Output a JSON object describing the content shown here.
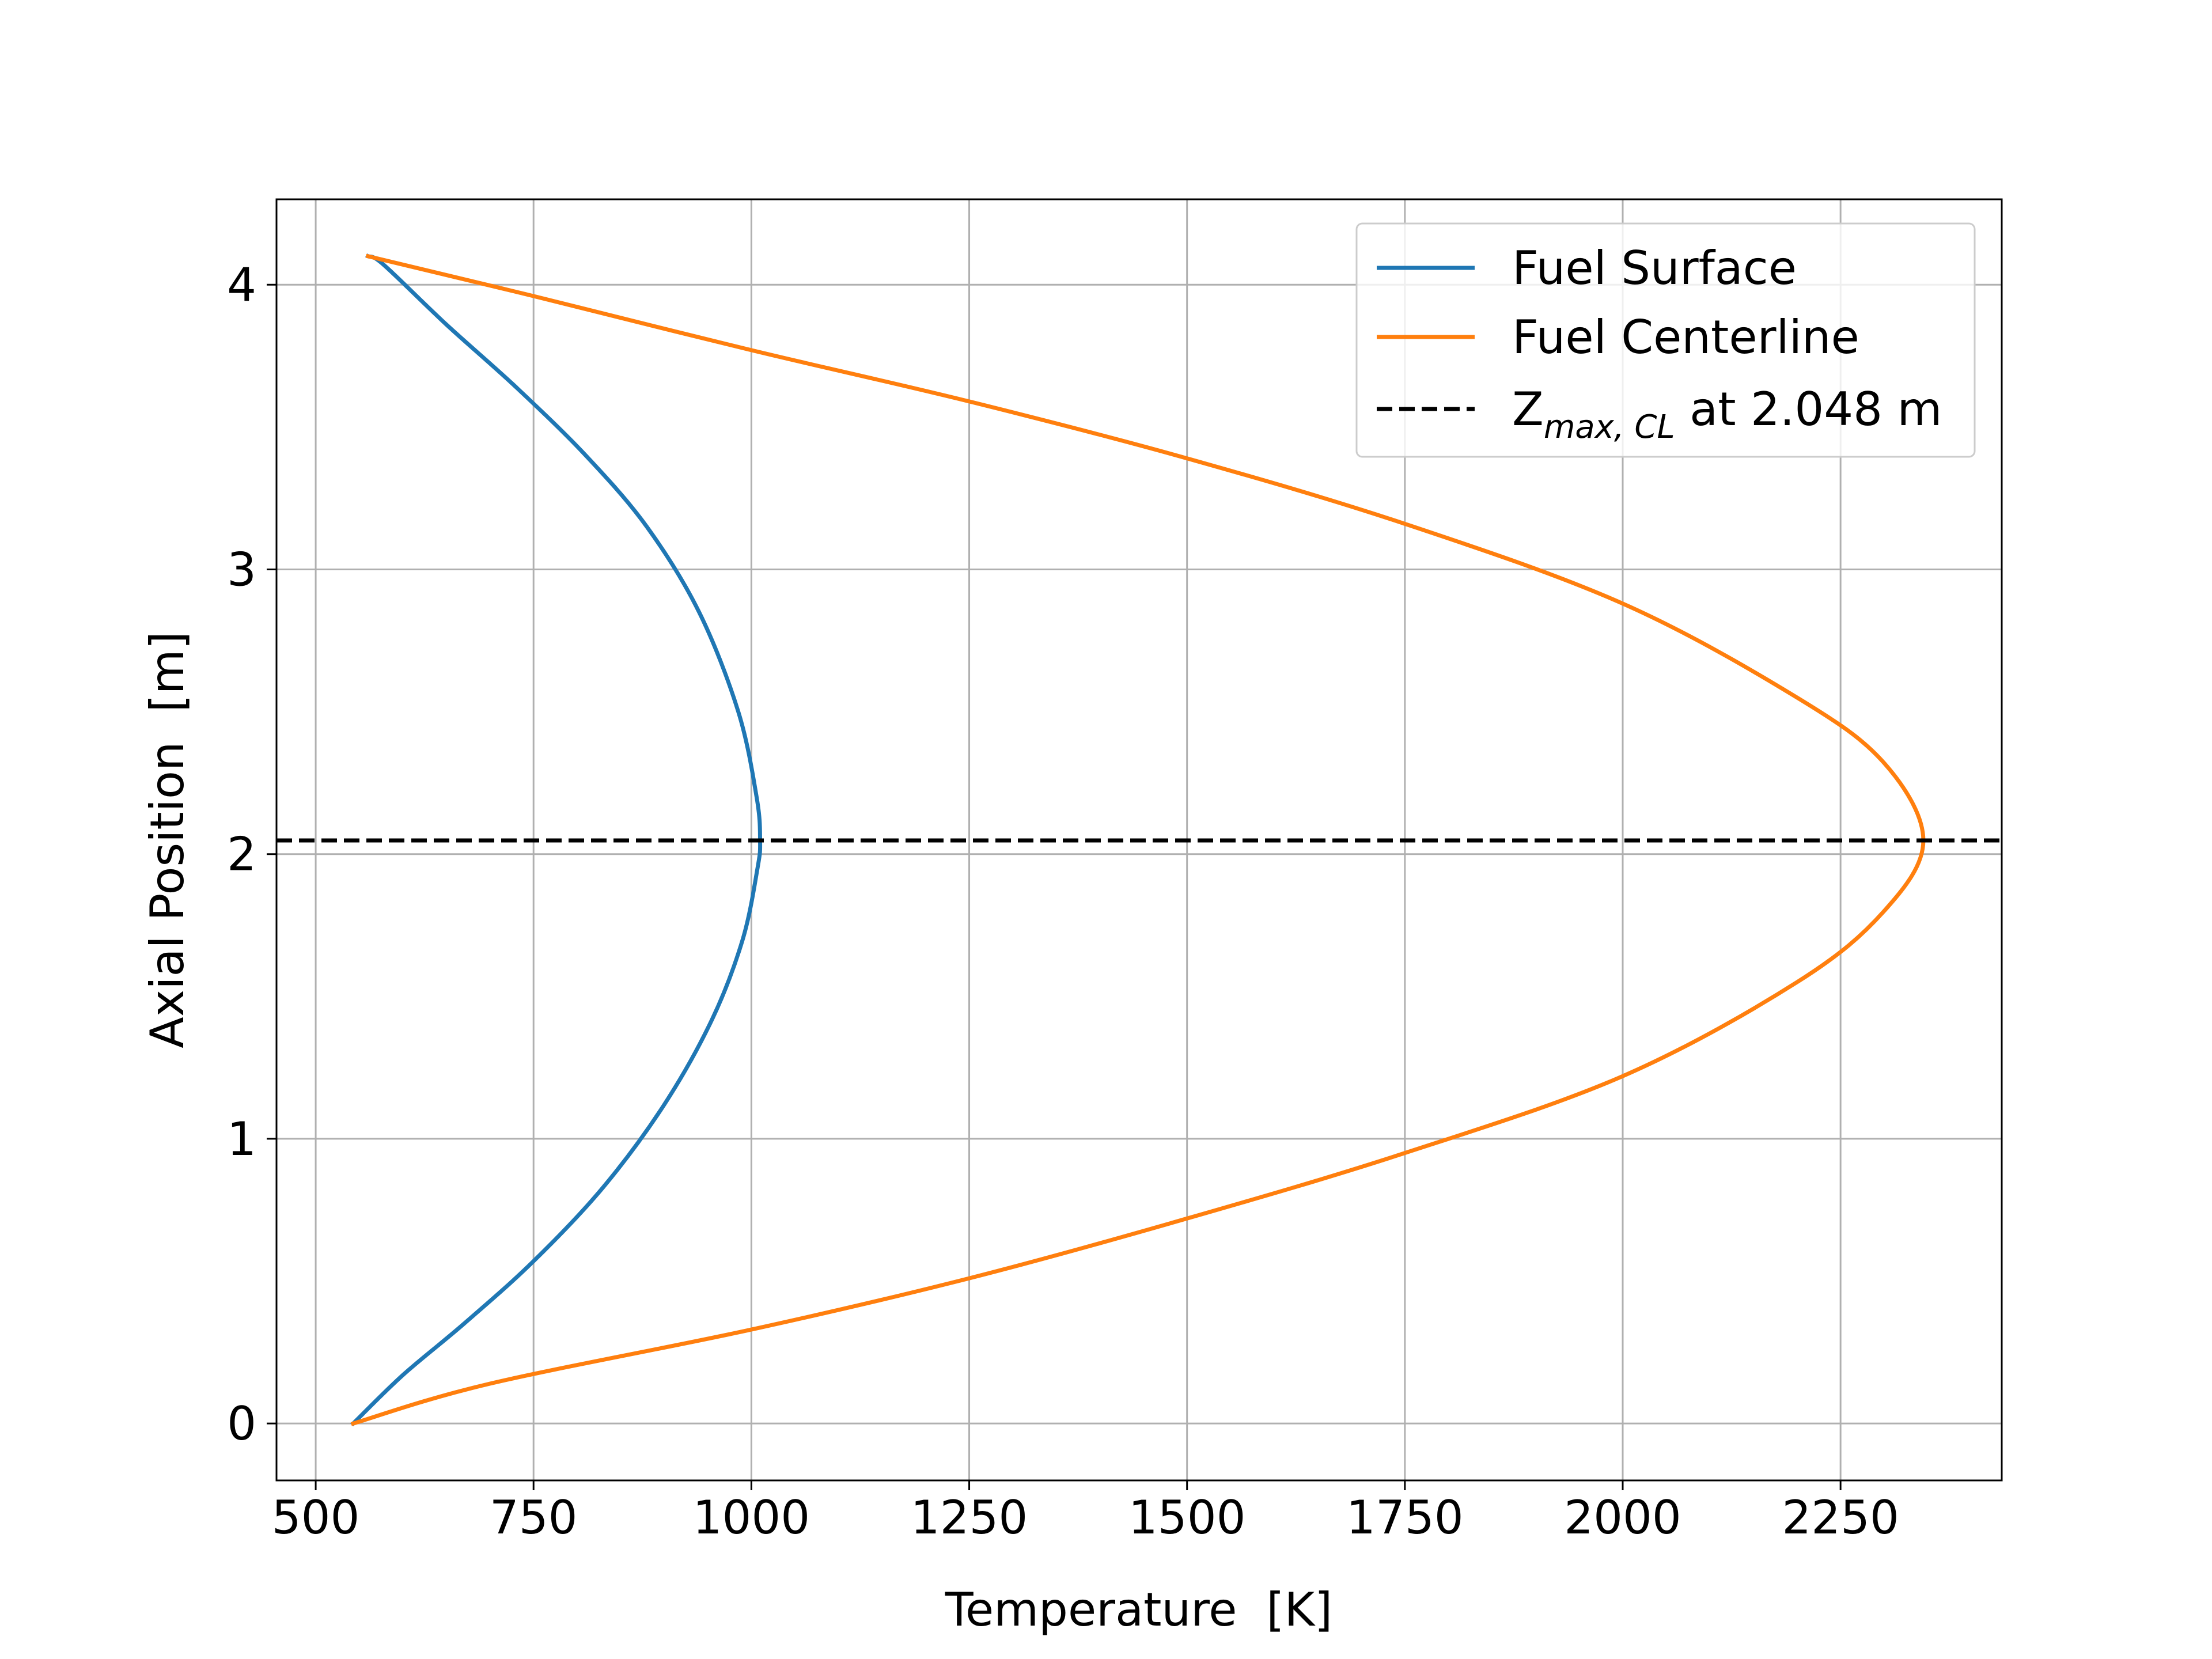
{
  "chart_data": {
    "type": "line",
    "xlabel": "Temperature  [K]",
    "ylabel": "Axial Position  [m]",
    "xlim": [
      455,
      2435
    ],
    "ylim": [
      -0.2,
      4.3
    ],
    "xticks": [
      500,
      750,
      1000,
      1250,
      1500,
      1750,
      2000,
      2250
    ],
    "xtick_labels": [
      "500",
      "750",
      "1000",
      "1250",
      "1500",
      "1750",
      "2000",
      "2250"
    ],
    "yticks": [
      0,
      1,
      2,
      3,
      4
    ],
    "ytick_labels": [
      "0",
      "1",
      "2",
      "3",
      "4"
    ],
    "grid": true,
    "legend_position": "top-right",
    "series": [
      {
        "name": "Fuel Surface",
        "color": "#1f77b4",
        "style": "solid",
        "points": [
          [
            543,
            0.0
          ],
          [
            600,
            0.17
          ],
          [
            670,
            0.35
          ],
          [
            750,
            0.57
          ],
          [
            830,
            0.83
          ],
          [
            900,
            1.12
          ],
          [
            955,
            1.42
          ],
          [
            990,
            1.7
          ],
          [
            1007,
            1.95
          ],
          [
            1010,
            2.05
          ],
          [
            1006,
            2.2
          ],
          [
            985,
            2.5
          ],
          [
            940,
            2.85
          ],
          [
            880,
            3.15
          ],
          [
            810,
            3.4
          ],
          [
            730,
            3.64
          ],
          [
            650,
            3.86
          ],
          [
            578,
            4.07
          ],
          [
            560,
            4.1
          ]
        ]
      },
      {
        "name": "Fuel Centerline",
        "color": "#ff7f0e",
        "style": "solid",
        "points": [
          [
            543,
            0.0
          ],
          [
            700,
            0.14
          ],
          [
            1000,
            0.33
          ],
          [
            1250,
            0.51
          ],
          [
            1500,
            0.72
          ],
          [
            1750,
            0.95
          ],
          [
            2000,
            1.22
          ],
          [
            2200,
            1.55
          ],
          [
            2300,
            1.8
          ],
          [
            2345,
            2.048
          ],
          [
            2300,
            2.32
          ],
          [
            2200,
            2.55
          ],
          [
            2000,
            2.88
          ],
          [
            1750,
            3.16
          ],
          [
            1500,
            3.39
          ],
          [
            1250,
            3.59
          ],
          [
            1000,
            3.77
          ],
          [
            750,
            3.96
          ],
          [
            560,
            4.1
          ]
        ]
      }
    ],
    "hlines": [
      {
        "y": 2.048,
        "color": "#000000",
        "style": "dashed"
      }
    ],
    "legend": {
      "entries": [
        {
          "label": "Fuel Surface",
          "color": "#1f77b4",
          "style": "solid"
        },
        {
          "label": "Fuel Centerline",
          "color": "#ff7f0e",
          "style": "solid"
        },
        {
          "label_main": "Z",
          "label_sub": "max, CL",
          "label_rest": " at 2.048 m",
          "color": "#000000",
          "style": "dashed"
        }
      ]
    }
  }
}
